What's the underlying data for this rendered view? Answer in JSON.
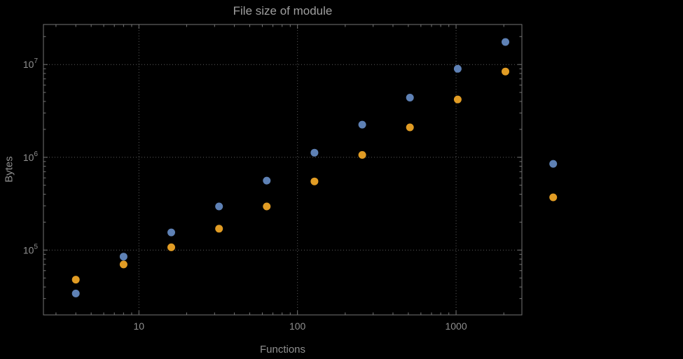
{
  "chart_data": {
    "type": "scatter",
    "title": "File size of module",
    "xlabel": "Functions",
    "ylabel": "Bytes",
    "x_scale": "log",
    "y_scale": "log",
    "xlim": [
      2.5,
      2600
    ],
    "ylim": [
      20000,
      27000000
    ],
    "x_ticks": [
      10,
      100,
      1000
    ],
    "x_tick_labels": [
      "10",
      "100",
      "1000"
    ],
    "y_ticks": [
      100000,
      1000000,
      10000000
    ],
    "y_tick_exponents": [
      5,
      6,
      7
    ],
    "grid": true,
    "legend": "none",
    "clip_points": false,
    "x": [
      4,
      8,
      16,
      32,
      64,
      128,
      256,
      512,
      1024,
      2048,
      4096
    ],
    "series": [
      {
        "name": "series-blue",
        "color": "#5e81b5",
        "values": [
          34000,
          85000,
          155000,
          295000,
          560000,
          1120000,
          2250000,
          4400000,
          9000000,
          17500000,
          850000
        ]
      },
      {
        "name": "series-orange",
        "color": "#e19c24",
        "values": [
          48000,
          70000,
          107000,
          170000,
          295000,
          550000,
          1060000,
          2100000,
          4200000,
          8400000,
          370000
        ]
      }
    ],
    "colors": {
      "background": "#000000",
      "grid": "#5c5c5c",
      "frame": "#757575",
      "text": "#8f8f8f",
      "title": "#9f9f9f"
    }
  }
}
